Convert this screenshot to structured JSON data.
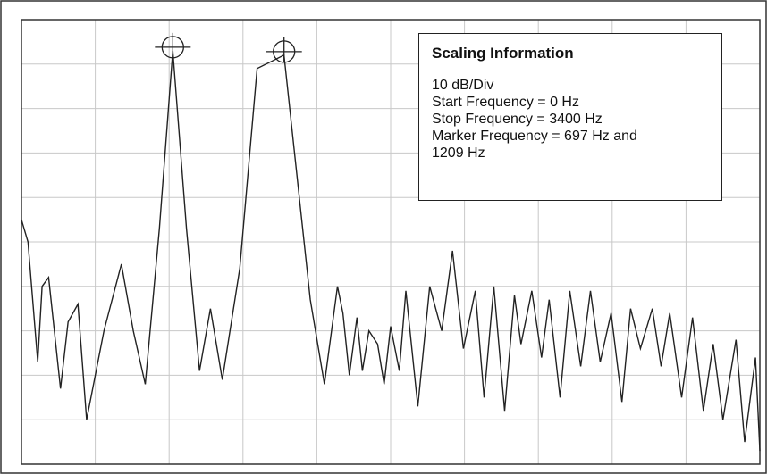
{
  "scaling_info": {
    "title": "Scaling Information",
    "lines": [
      "10 dB/Div",
      "Start Frequency = 0 Hz",
      "Stop Frequency = 3400 Hz",
      "Marker Frequency = 697 Hz and",
      "1209 Hz"
    ]
  },
  "chart_data": {
    "type": "line",
    "title": "",
    "xlabel": "",
    "ylabel": "",
    "x_unit": "Hz",
    "y_unit": "dB",
    "xlim": [
      0,
      3400
    ],
    "y_divisions": 10,
    "x_divisions": 10,
    "grid": true,
    "colors": {
      "trace": "#222222",
      "grid": "#c8c8c8",
      "frame": "#333333"
    },
    "markers": [
      {
        "x": 697,
        "y": 93
      },
      {
        "x": 1209,
        "y": 92
      }
    ],
    "series": [
      {
        "x": [
          0,
          30,
          75,
          95,
          125,
          180,
          215,
          260,
          300,
          380,
          460,
          515,
          570,
          635,
          697,
          760,
          820,
          870,
          925,
          1005,
          1085,
          1209,
          1330,
          1395,
          1455,
          1480,
          1510,
          1545,
          1570,
          1600,
          1640,
          1670,
          1700,
          1740,
          1770,
          1825,
          1880,
          1935,
          1985,
          2035,
          2090,
          2130,
          2175,
          2225,
          2270,
          2300,
          2350,
          2395,
          2430,
          2480,
          2525,
          2575,
          2620,
          2665,
          2715,
          2765,
          2805,
          2850,
          2905,
          2945,
          2985,
          3040,
          3090,
          3140,
          3185,
          3230,
          3290,
          3330,
          3380,
          3400
        ],
        "y": [
          55,
          50,
          23,
          40,
          42,
          17,
          32,
          36,
          10,
          30,
          45,
          30,
          18,
          53,
          93,
          53,
          21,
          35,
          19,
          44,
          89,
          92,
          37,
          18,
          40,
          34,
          20,
          33,
          21,
          30,
          27,
          18,
          31,
          21,
          39,
          13,
          40,
          30,
          48,
          26,
          39,
          15,
          40,
          12,
          38,
          27,
          39,
          24,
          37,
          15,
          39,
          22,
          39,
          23,
          34,
          14,
          35,
          26,
          35,
          22,
          34,
          15,
          33,
          12,
          27,
          10,
          28,
          5,
          24,
          3
        ]
      }
    ]
  }
}
